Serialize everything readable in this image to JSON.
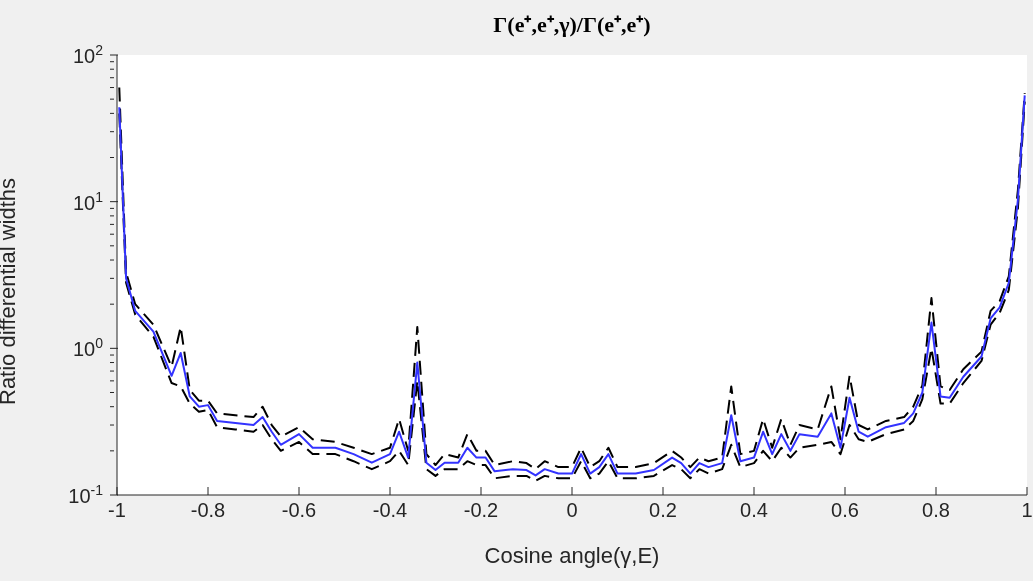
{
  "chart_data": {
    "type": "line",
    "title": "Γ(e⁺,e⁺,γ)/Γ(e⁺,e⁺)",
    "xlabel": "Cosine angle(γ,E)",
    "ylabel": "Ratio differential widths",
    "x": [
      -0.995,
      -0.98,
      -0.96,
      -0.92,
      -0.88,
      -0.86,
      -0.84,
      -0.82,
      -0.8,
      -0.78,
      -0.74,
      -0.7,
      -0.68,
      -0.66,
      -0.64,
      -0.6,
      -0.57,
      -0.52,
      -0.48,
      -0.44,
      -0.4,
      -0.38,
      -0.36,
      -0.34,
      -0.32,
      -0.3,
      -0.28,
      -0.25,
      -0.23,
      -0.21,
      -0.19,
      -0.17,
      -0.13,
      -0.1,
      -0.08,
      -0.06,
      -0.03,
      0,
      0.02,
      0.04,
      0.06,
      0.08,
      0.1,
      0.14,
      0.18,
      0.22,
      0.24,
      0.26,
      0.28,
      0.3,
      0.33,
      0.35,
      0.37,
      0.4,
      0.42,
      0.44,
      0.46,
      0.48,
      0.5,
      0.54,
      0.57,
      0.59,
      0.61,
      0.63,
      0.65,
      0.69,
      0.73,
      0.75,
      0.77,
      0.79,
      0.81,
      0.83,
      0.86,
      0.9,
      0.92,
      0.94,
      0.96,
      0.98,
      0.995
    ],
    "series": [
      {
        "color": "#000000",
        "line_style": "dashed",
        "values": [
          60,
          3.3,
          2.0,
          1.45,
          0.75,
          1.4,
          0.52,
          0.44,
          0.44,
          0.36,
          0.35,
          0.34,
          0.4,
          0.3,
          0.25,
          0.29,
          0.24,
          0.23,
          0.21,
          0.19,
          0.21,
          0.33,
          0.2,
          1.4,
          0.19,
          0.16,
          0.19,
          0.18,
          0.26,
          0.2,
          0.2,
          0.16,
          0.17,
          0.165,
          0.15,
          0.17,
          0.155,
          0.155,
          0.21,
          0.155,
          0.17,
          0.21,
          0.155,
          0.155,
          0.165,
          0.2,
          0.18,
          0.155,
          0.18,
          0.17,
          0.18,
          0.55,
          0.19,
          0.2,
          0.33,
          0.21,
          0.33,
          0.22,
          0.3,
          0.28,
          0.55,
          0.24,
          0.65,
          0.3,
          0.28,
          0.32,
          0.34,
          0.4,
          0.56,
          2.2,
          0.55,
          0.52,
          0.72,
          0.95,
          1.8,
          2.1,
          3.1,
          12,
          55
        ]
      },
      {
        "color": "#000000",
        "line_style": "dashed",
        "values": [
          40,
          2.8,
          1.7,
          1.2,
          0.58,
          0.55,
          0.42,
          0.37,
          0.38,
          0.29,
          0.28,
          0.27,
          0.3,
          0.24,
          0.2,
          0.23,
          0.19,
          0.19,
          0.17,
          0.15,
          0.17,
          0.2,
          0.16,
          0.6,
          0.15,
          0.135,
          0.15,
          0.15,
          0.17,
          0.16,
          0.16,
          0.13,
          0.135,
          0.135,
          0.125,
          0.135,
          0.13,
          0.13,
          0.17,
          0.13,
          0.14,
          0.17,
          0.13,
          0.13,
          0.135,
          0.16,
          0.15,
          0.13,
          0.15,
          0.14,
          0.15,
          0.22,
          0.155,
          0.165,
          0.2,
          0.17,
          0.21,
          0.18,
          0.21,
          0.22,
          0.23,
          0.19,
          0.3,
          0.24,
          0.23,
          0.26,
          0.28,
          0.32,
          0.45,
          1.0,
          0.42,
          0.42,
          0.58,
          0.82,
          1.45,
          1.75,
          2.5,
          9,
          48
        ]
      },
      {
        "color": "#3333ff",
        "line_style": "solid",
        "values": [
          44,
          3.0,
          1.8,
          1.3,
          0.65,
          0.93,
          0.47,
          0.4,
          0.41,
          0.32,
          0.31,
          0.3,
          0.34,
          0.27,
          0.22,
          0.26,
          0.21,
          0.21,
          0.19,
          0.166,
          0.19,
          0.27,
          0.18,
          0.8,
          0.166,
          0.148,
          0.166,
          0.166,
          0.21,
          0.18,
          0.18,
          0.145,
          0.15,
          0.148,
          0.136,
          0.15,
          0.14,
          0.14,
          0.19,
          0.14,
          0.155,
          0.19,
          0.14,
          0.14,
          0.148,
          0.18,
          0.165,
          0.14,
          0.165,
          0.155,
          0.165,
          0.35,
          0.17,
          0.18,
          0.27,
          0.19,
          0.26,
          0.2,
          0.26,
          0.25,
          0.36,
          0.21,
          0.46,
          0.27,
          0.25,
          0.29,
          0.31,
          0.36,
          0.5,
          1.5,
          0.47,
          0.46,
          0.64,
          0.88,
          1.6,
          1.9,
          2.8,
          10.3,
          53
        ]
      }
    ],
    "log": "y",
    "xlim": [
      -1,
      1
    ],
    "xticks": [
      -1,
      -0.8,
      -0.6,
      -0.4,
      -0.2,
      0,
      0.2,
      0.4,
      0.6,
      0.8,
      1
    ],
    "ylim": [
      0.1,
      100
    ],
    "yticks": [
      {
        "value": 0.1,
        "label": "10$^{-1}$"
      },
      {
        "value": 0.2,
        "label": null
      },
      {
        "value": 0.3,
        "label": null
      },
      {
        "value": 0.4,
        "label": null
      },
      {
        "value": 0.5,
        "label": null
      },
      {
        "value": 0.6,
        "label": null
      },
      {
        "value": 0.7,
        "label": null
      },
      {
        "value": 0.8,
        "label": null
      },
      {
        "value": 0.9,
        "label": null
      },
      {
        "value": 1,
        "label": "10$^{0}$"
      },
      {
        "value": 2,
        "label": null
      },
      {
        "value": 3,
        "label": null
      },
      {
        "value": 4,
        "label": null
      },
      {
        "value": 5,
        "label": null
      },
      {
        "value": 6,
        "label": null
      },
      {
        "value": 7,
        "label": null
      },
      {
        "value": 8,
        "label": null
      },
      {
        "value": 9,
        "label": null
      },
      {
        "value": 10,
        "label": "10$^{1}$"
      },
      {
        "value": 20,
        "label": null
      },
      {
        "value": 30,
        "label": null
      },
      {
        "value": 40,
        "label": null
      },
      {
        "value": 50,
        "label": null
      },
      {
        "value": 60,
        "label": null
      },
      {
        "value": 70,
        "label": null
      },
      {
        "value": 80,
        "label": null
      },
      {
        "value": 90,
        "label": null
      },
      {
        "value": 100,
        "label": "10$^{2}$"
      }
    ],
    "grid": false,
    "legend": false,
    "marker": "none"
  }
}
